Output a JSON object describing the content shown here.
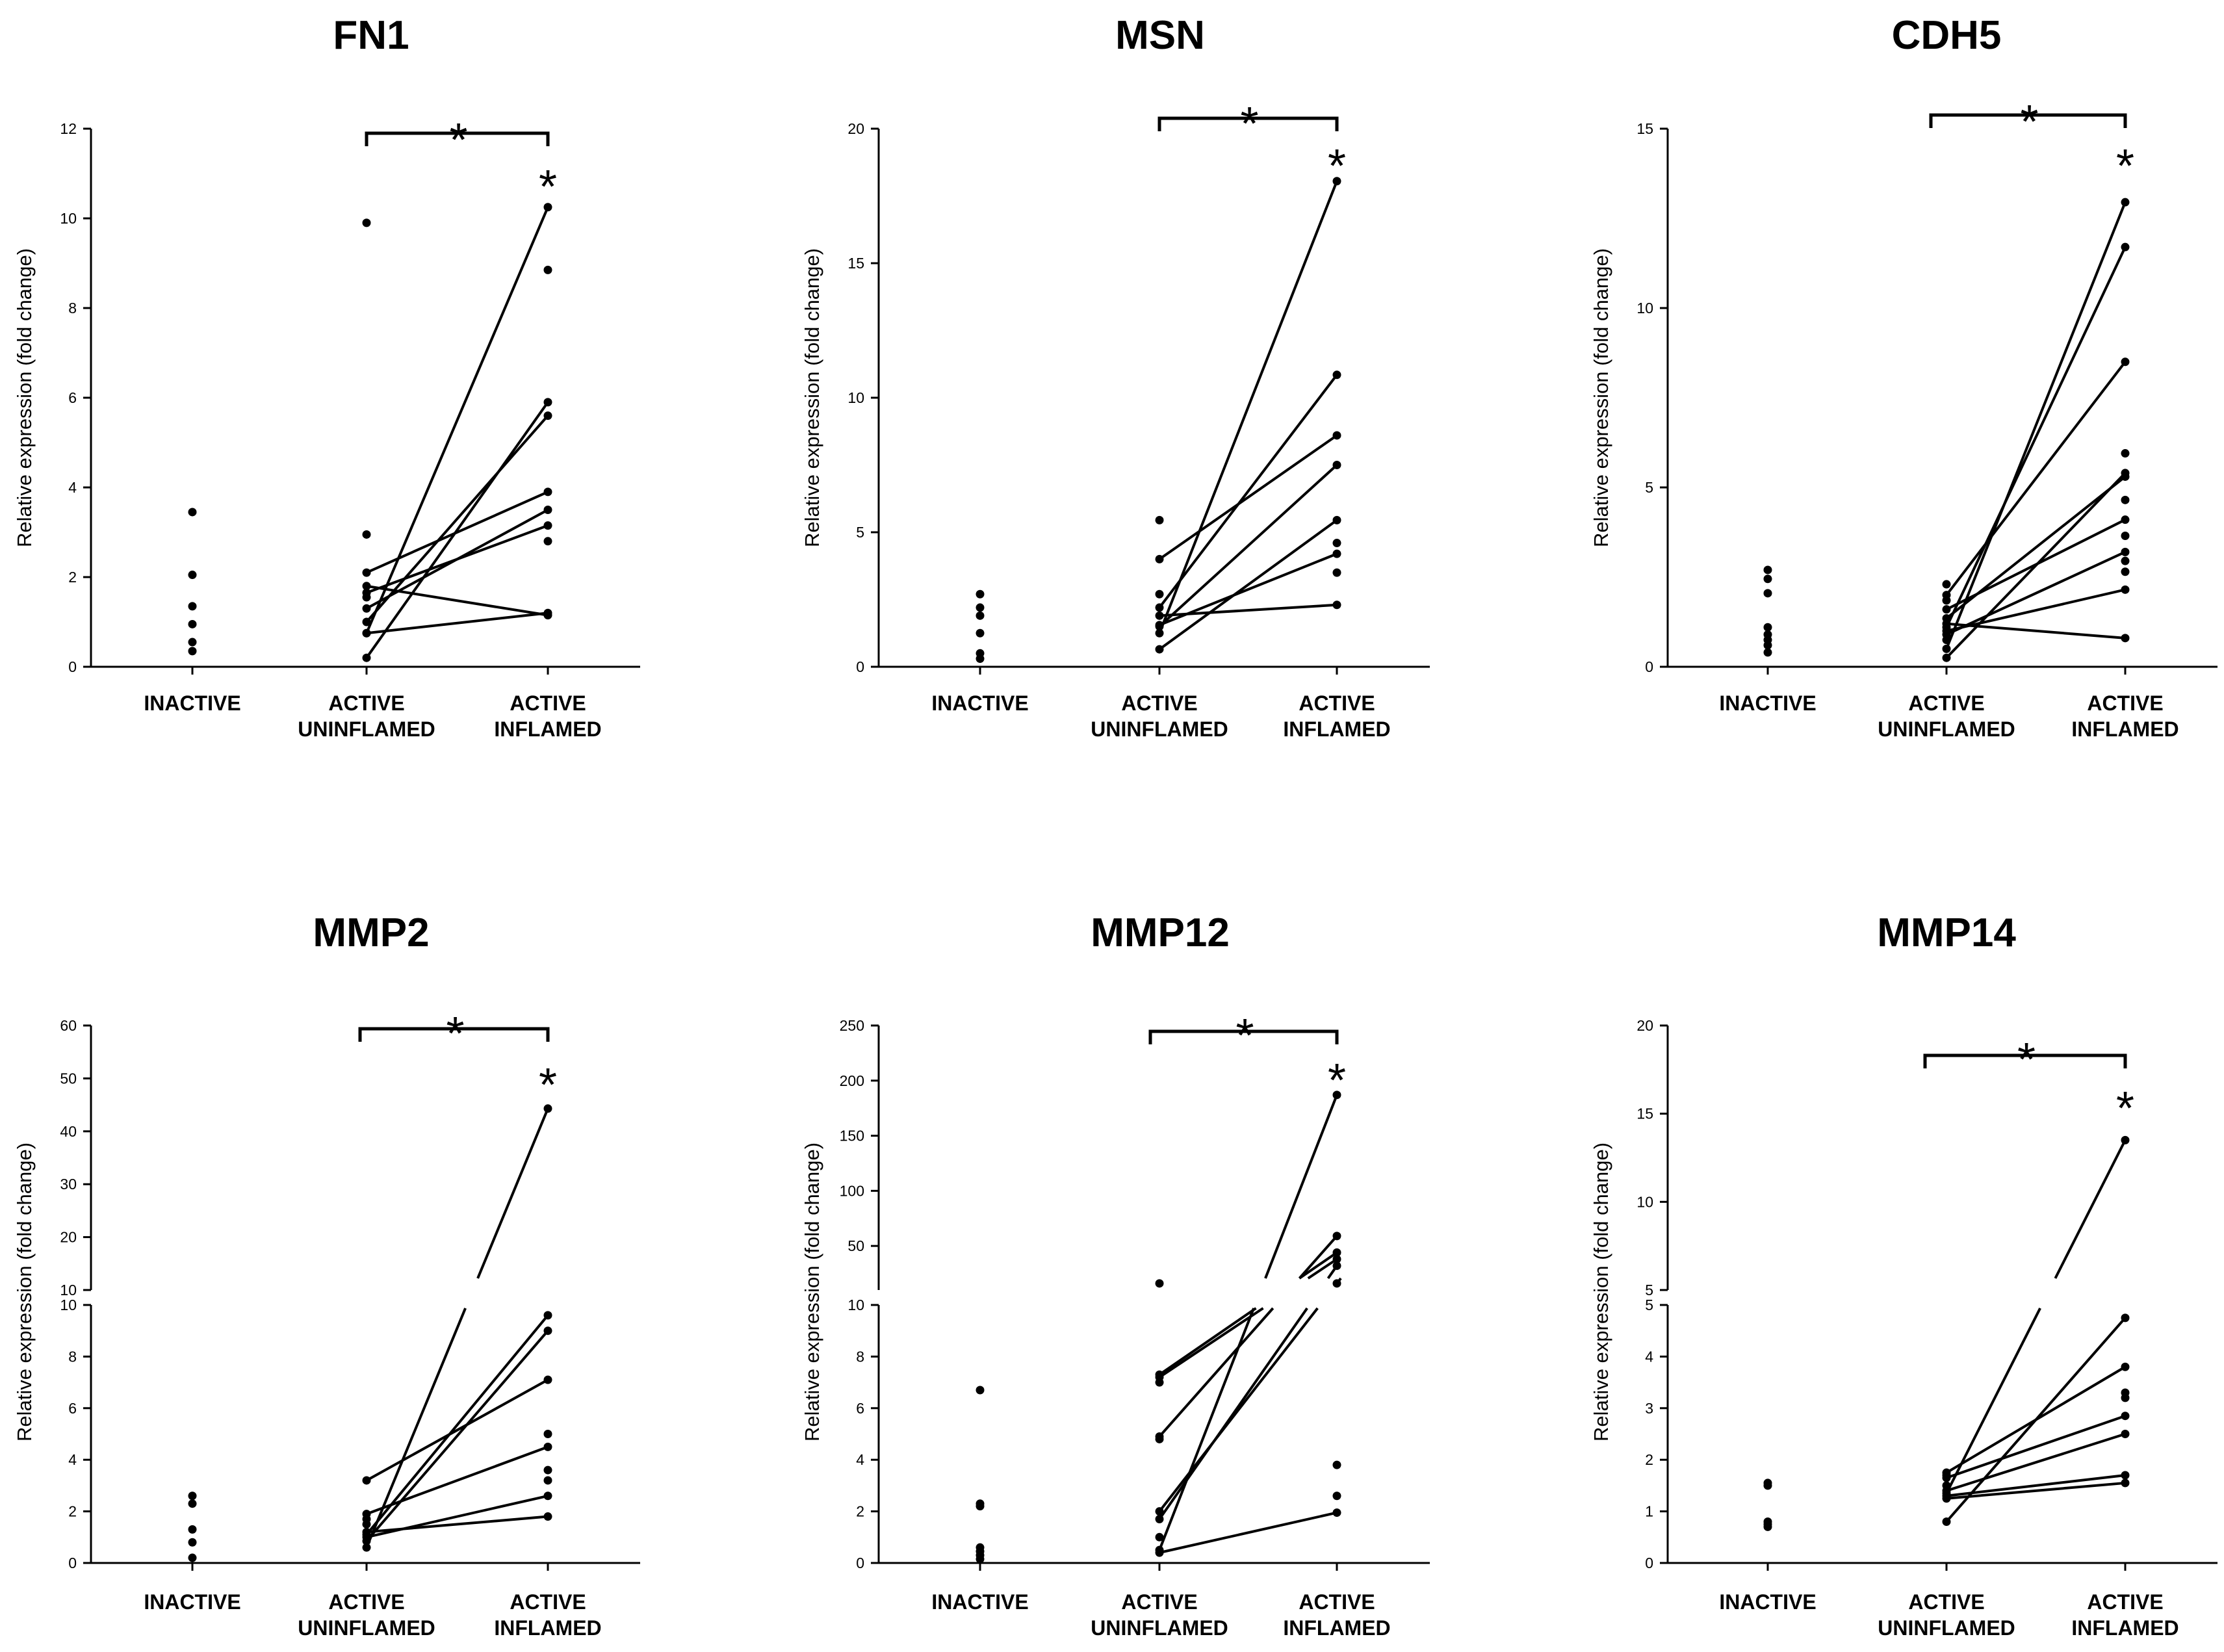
{
  "colors": {
    "ink": "#000000",
    "background": "#ffffff"
  },
  "chart_data": [
    {
      "type": "scatter",
      "title": "FN1",
      "ylabel": "Relative expression (fold change)",
      "xlabel": "",
      "categories": [
        [
          "INACTIVE"
        ],
        [
          "ACTIVE",
          "UNINFLAMED"
        ],
        [
          "ACTIVE",
          "INFLAMED"
        ]
      ],
      "broken_axis": false,
      "ylim": [
        0,
        12
      ],
      "yticks": [
        0,
        2,
        4,
        6,
        8,
        10,
        12
      ],
      "inactive_points": [
        3.45,
        2.05,
        1.35,
        0.95,
        0.55,
        0.35
      ],
      "paired": [
        [
          0.75,
          10.25
        ],
        [
          0.2,
          5.9
        ],
        [
          1.0,
          5.6
        ],
        [
          2.1,
          3.9
        ],
        [
          1.3,
          3.5
        ],
        [
          1.8,
          1.15
        ],
        [
          1.65,
          3.15
        ],
        [
          0.75,
          1.2
        ]
      ],
      "extra_uninflamed": [
        9.9,
        2.95,
        1.55
      ],
      "extra_inflamed": [
        8.85,
        2.8
      ],
      "bracket_label": "*",
      "point_label": "*"
    },
    {
      "type": "scatter",
      "title": "MSN",
      "ylabel": "Relative expression (fold change)",
      "xlabel": "",
      "categories": [
        [
          "INACTIVE"
        ],
        [
          "ACTIVE",
          "UNINFLAMED"
        ],
        [
          "ACTIVE",
          "INFLAMED"
        ]
      ],
      "broken_axis": false,
      "ylim": [
        0,
        20
      ],
      "yticks": [
        0,
        5,
        10,
        15,
        20
      ],
      "inactive_points": [
        2.7,
        2.2,
        1.9,
        1.25,
        0.5,
        0.3
      ],
      "paired": [
        [
          1.25,
          18.05
        ],
        [
          2.2,
          10.85
        ],
        [
          4.0,
          8.6
        ],
        [
          1.5,
          7.5
        ],
        [
          0.65,
          5.45
        ],
        [
          1.55,
          4.2
        ],
        [
          1.9,
          2.3
        ]
      ],
      "extra_uninflamed": [
        5.45,
        2.7
      ],
      "extra_inflamed": [
        4.6,
        3.5
      ],
      "bracket_label": "*",
      "point_label": "*"
    },
    {
      "type": "scatter",
      "title": "CDH5",
      "ylabel": "Relative expression (fold change)",
      "xlabel": "",
      "categories": [
        [
          "INACTIVE"
        ],
        [
          "ACTIVE",
          "UNINFLAMED"
        ],
        [
          "ACTIVE",
          "INFLAMED"
        ]
      ],
      "broken_axis": false,
      "ylim": [
        0,
        15
      ],
      "yticks": [
        0,
        5,
        10,
        15
      ],
      "inactive_points": [
        2.7,
        2.45,
        2.05,
        1.1,
        0.9,
        0.75,
        0.6,
        0.4
      ],
      "paired": [
        [
          0.5,
          12.95
        ],
        [
          1.1,
          11.7
        ],
        [
          2.0,
          8.5
        ],
        [
          0.25,
          5.4
        ],
        [
          1.35,
          5.3
        ],
        [
          1.6,
          4.1
        ],
        [
          0.9,
          3.2
        ],
        [
          1.0,
          2.15
        ],
        [
          1.2,
          0.8
        ]
      ],
      "extra_uninflamed": [
        2.3,
        1.85,
        0.75
      ],
      "extra_inflamed": [
        5.95,
        4.65,
        3.65,
        2.95,
        2.65
      ],
      "bracket_label": "*",
      "point_label": "*"
    },
    {
      "type": "scatter",
      "title": "MMP2",
      "ylabel": "Relative expression (fold change)",
      "xlabel": "",
      "categories": [
        [
          "INACTIVE"
        ],
        [
          "ACTIVE",
          "UNINFLAMED"
        ],
        [
          "ACTIVE",
          "INFLAMED"
        ]
      ],
      "broken_axis": true,
      "ylim": [
        0,
        60
      ],
      "upper_range": [
        10,
        60
      ],
      "upper_ticks": [
        10,
        20,
        30,
        40,
        50,
        60
      ],
      "lower_range": [
        0,
        10
      ],
      "lower_ticks": [
        0,
        2,
        4,
        6,
        8,
        10
      ],
      "inactive_points": [
        2.6,
        2.3,
        1.3,
        0.8,
        0.2
      ],
      "paired": [
        [
          0.6,
          44.3
        ],
        [
          1.1,
          9.6
        ],
        [
          0.85,
          9.0
        ],
        [
          3.2,
          7.1
        ],
        [
          1.9,
          4.5
        ],
        [
          1.0,
          2.6
        ],
        [
          1.2,
          1.8
        ]
      ],
      "extra_uninflamed": [
        1.7,
        1.5
      ],
      "extra_inflamed": [
        5.0,
        3.6,
        3.2
      ],
      "bracket_label": "*",
      "point_label": "*"
    },
    {
      "type": "scatter",
      "title": "MMP12",
      "ylabel": "Relative expression (fold change)",
      "xlabel": "",
      "categories": [
        [
          "INACTIVE"
        ],
        [
          "ACTIVE",
          "UNINFLAMED"
        ],
        [
          "ACTIVE",
          "INFLAMED"
        ]
      ],
      "broken_axis": true,
      "ylim": [
        0,
        250
      ],
      "upper_range": [
        10,
        250
      ],
      "upper_ticks": [
        50,
        100,
        150,
        200,
        250
      ],
      "lower_range": [
        0,
        10
      ],
      "lower_ticks": [
        0,
        2,
        4,
        6,
        8,
        10
      ],
      "inactive_points": [
        6.7,
        2.3,
        2.2,
        0.6,
        0.45,
        0.3,
        0.15
      ],
      "paired": [
        [
          0.5,
          187
        ],
        [
          4.9,
          59
        ],
        [
          7.3,
          44
        ],
        [
          7.2,
          38
        ],
        [
          1.7,
          32
        ],
        [
          2.0,
          16
        ],
        [
          0.4,
          1.95
        ]
      ],
      "extra_uninflamed": [
        16,
        7.0,
        4.8,
        1.0
      ],
      "extra_inflamed": [
        3.8,
        2.6
      ],
      "bracket_label": "*",
      "point_label": "*"
    },
    {
      "type": "scatter",
      "title": "MMP14",
      "ylabel": "Relative expression (fold change)",
      "xlabel": "",
      "categories": [
        [
          "INACTIVE"
        ],
        [
          "ACTIVE",
          "UNINFLAMED"
        ],
        [
          "ACTIVE",
          "INFLAMED"
        ]
      ],
      "broken_axis": true,
      "ylim": [
        0,
        20
      ],
      "upper_range": [
        5,
        20
      ],
      "upper_ticks": [
        5,
        10,
        15,
        20
      ],
      "lower_range": [
        0,
        5
      ],
      "lower_ticks": [
        0,
        1,
        2,
        3,
        4,
        5
      ],
      "inactive_points": [
        1.55,
        1.5,
        0.8,
        0.75,
        0.7
      ],
      "paired": [
        [
          1.35,
          13.5
        ],
        [
          0.8,
          4.75
        ],
        [
          1.75,
          3.8
        ],
        [
          1.65,
          2.85
        ],
        [
          1.3,
          1.7
        ],
        [
          1.25,
          1.55
        ],
        [
          1.4,
          2.5
        ]
      ],
      "extra_uninflamed": [
        1.7,
        1.5
      ],
      "extra_inflamed": [
        3.3,
        3.2
      ],
      "bracket_label": "*",
      "point_label": "*"
    }
  ]
}
